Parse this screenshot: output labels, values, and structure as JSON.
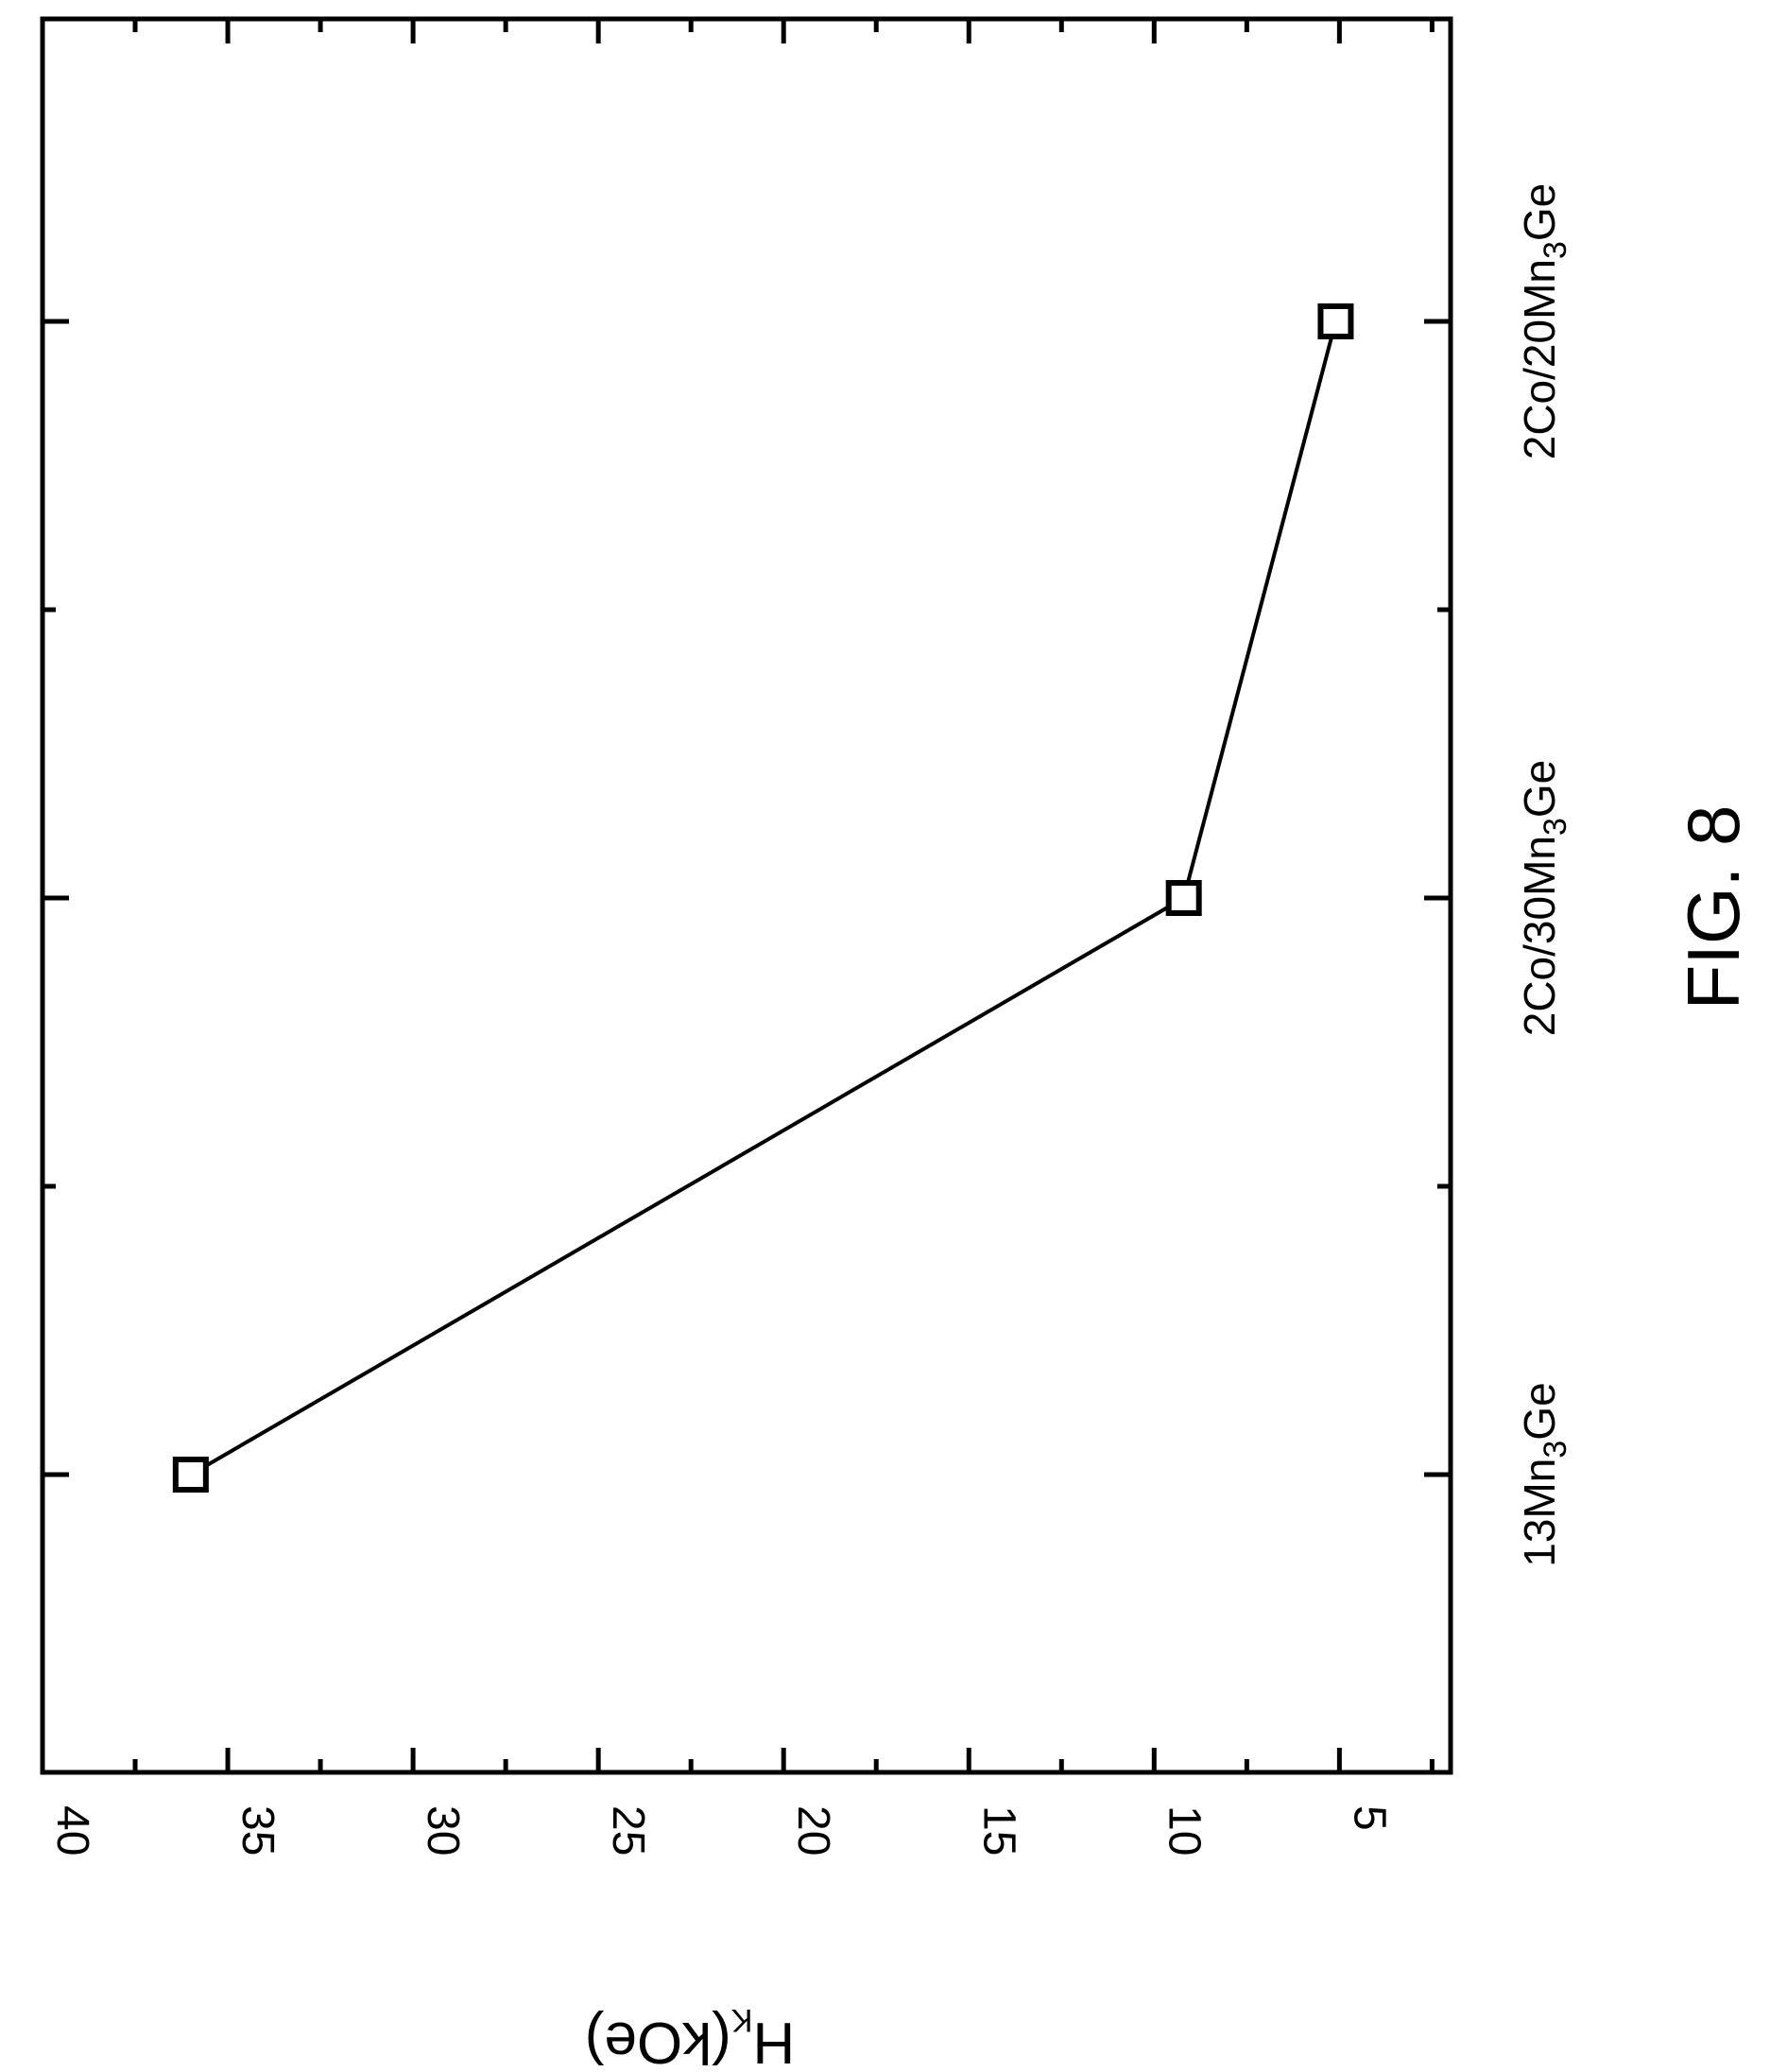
{
  "figure_caption": "FIG. 8",
  "chart_data": {
    "type": "line",
    "title": "",
    "ylabel": {
      "main": "H",
      "sub": "K",
      "rest": "(kOe)"
    },
    "xlabel": "",
    "ylim": [
      2,
      40
    ],
    "yticks": [
      5,
      10,
      15,
      20,
      25,
      30,
      35,
      40
    ],
    "yminor_step": 2.5,
    "categories": [
      {
        "parts": [
          "13Mn",
          "3",
          "Ge"
        ]
      },
      {
        "parts": [
          "2Co/30Mn",
          "3",
          "Ge"
        ]
      },
      {
        "parts": [
          "2Co/20Mn",
          "3",
          "Ge"
        ]
      }
    ],
    "series": [
      {
        "values": [
          36,
          9.2,
          5.1
        ],
        "marker": "open-square"
      }
    ],
    "grid": false,
    "legend": "none",
    "line_color": "#000000"
  }
}
